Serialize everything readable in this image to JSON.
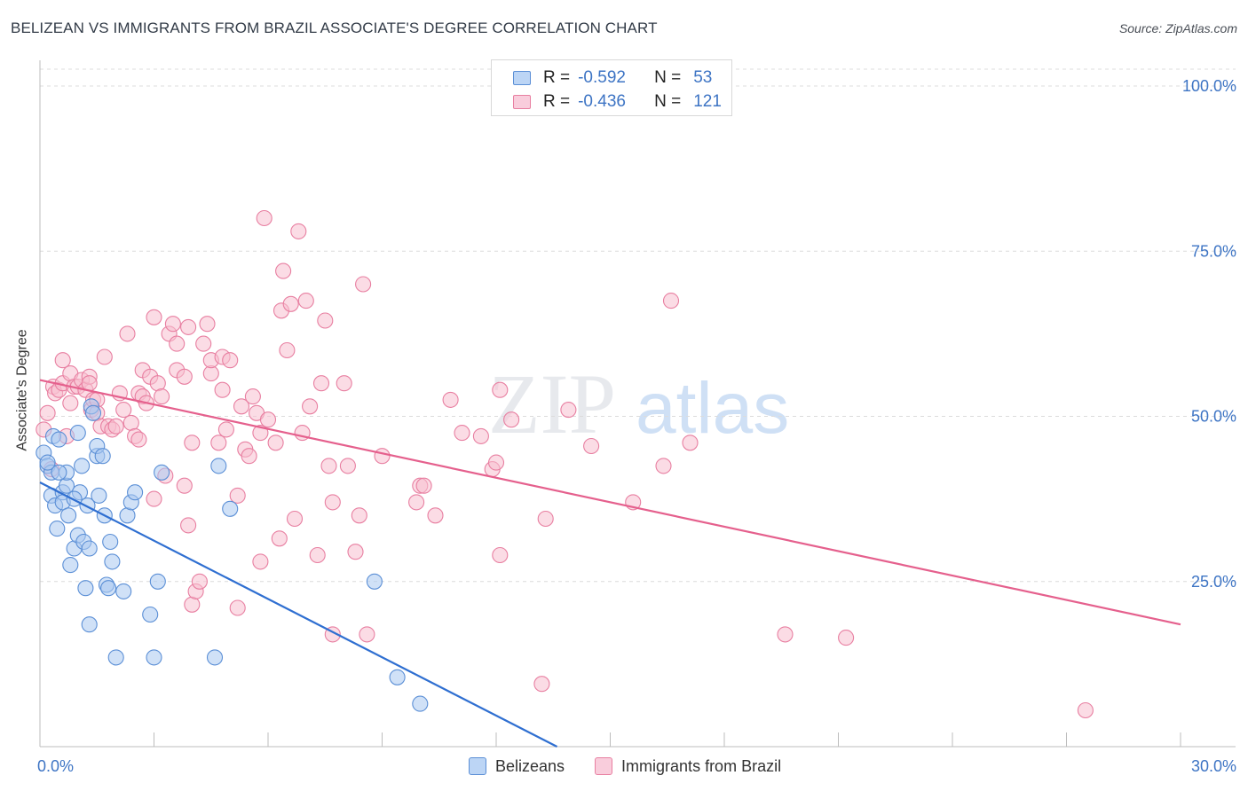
{
  "title": "BELIZEAN VS IMMIGRANTS FROM BRAZIL ASSOCIATE'S DEGREE CORRELATION CHART",
  "source": "Source: ZipAtlas.com",
  "watermark": {
    "zip": "ZIP",
    "atlas": "atlas"
  },
  "colors": {
    "blue_fill": "#a9c8f0",
    "blue_stroke": "#5b8fd6",
    "blue_line": "#2f6fd1",
    "pink_fill": "#f7bfd0",
    "pink_stroke": "#e87fa1",
    "pink_line": "#e5608d",
    "grid": "#dcdcdc",
    "tick_label": "#3d74c4"
  },
  "legend": {
    "rows": [
      {
        "r_label": "R =",
        "r_value": "-0.592",
        "n_label": "N =",
        "n_value": "53",
        "series": "blue"
      },
      {
        "r_label": "R =",
        "r_value": "-0.436",
        "n_label": "N =",
        "n_value": "121",
        "series": "pink"
      }
    ]
  },
  "bottom_legend": {
    "belizeans": "Belizeans",
    "brazil": "Immigrants from Brazil"
  },
  "chart_data": {
    "type": "scatter",
    "title": "BELIZEAN VS IMMIGRANTS FROM BRAZIL ASSOCIATE'S DEGREE CORRELATION CHART",
    "xlabel": "",
    "ylabel": "Associate's Degree",
    "xlim": [
      0,
      30
    ],
    "ylim": [
      0,
      100
    ],
    "x_tick_labels": [
      "0.0%",
      "30.0%"
    ],
    "y_ticks": [
      25,
      50,
      75,
      100
    ],
    "y_tick_labels": [
      "25.0%",
      "50.0%",
      "75.0%",
      "100.0%"
    ],
    "grid": true,
    "legend_position": "top-center",
    "series": [
      {
        "name": "Belizeans",
        "color": "#5b8fd6",
        "r": -0.592,
        "n": 53,
        "trend": {
          "x": [
            0,
            13.6
          ],
          "y": [
            40.0,
            0.0
          ]
        },
        "points": [
          [
            0.1,
            44.5
          ],
          [
            0.2,
            42.5
          ],
          [
            0.3,
            41.5
          ],
          [
            0.3,
            38.0
          ],
          [
            0.35,
            47.0
          ],
          [
            0.4,
            36.5
          ],
          [
            0.45,
            33.0
          ],
          [
            0.5,
            46.5
          ],
          [
            0.6,
            38.5
          ],
          [
            0.6,
            37.0
          ],
          [
            0.7,
            39.5
          ],
          [
            0.7,
            41.5
          ],
          [
            0.75,
            35.0
          ],
          [
            0.8,
            27.5
          ],
          [
            0.9,
            30.0
          ],
          [
            1.0,
            47.5
          ],
          [
            1.0,
            32.0
          ],
          [
            1.05,
            38.5
          ],
          [
            1.1,
            42.5
          ],
          [
            1.15,
            31.0
          ],
          [
            1.2,
            24.0
          ],
          [
            1.25,
            36.5
          ],
          [
            1.3,
            18.5
          ],
          [
            1.3,
            30.0
          ],
          [
            1.35,
            51.5
          ],
          [
            1.4,
            50.5
          ],
          [
            1.5,
            44.0
          ],
          [
            1.5,
            45.5
          ],
          [
            1.55,
            38.0
          ],
          [
            1.65,
            44.0
          ],
          [
            1.7,
            35.0
          ],
          [
            1.75,
            24.5
          ],
          [
            1.8,
            24.0
          ],
          [
            1.85,
            31.0
          ],
          [
            1.9,
            28.0
          ],
          [
            2.0,
            13.5
          ],
          [
            2.2,
            23.5
          ],
          [
            2.3,
            35.0
          ],
          [
            2.4,
            37.0
          ],
          [
            2.5,
            38.5
          ],
          [
            2.9,
            20.0
          ],
          [
            3.0,
            13.5
          ],
          [
            3.1,
            25.0
          ],
          [
            3.2,
            41.5
          ],
          [
            4.6,
            13.5
          ],
          [
            4.7,
            42.5
          ],
          [
            5.0,
            36.0
          ],
          [
            8.8,
            25.0
          ],
          [
            9.4,
            10.5
          ],
          [
            10.0,
            6.5
          ],
          [
            0.2,
            43.0
          ],
          [
            0.9,
            37.5
          ],
          [
            0.5,
            41.5
          ]
        ]
      },
      {
        "name": "Immigrants from Brazil",
        "color": "#e87fa1",
        "r": -0.436,
        "n": 121,
        "trend": {
          "x": [
            0,
            30
          ],
          "y": [
            55.5,
            18.5
          ]
        },
        "points": [
          [
            0.1,
            48.0
          ],
          [
            0.2,
            50.5
          ],
          [
            0.3,
            42.0
          ],
          [
            0.35,
            54.5
          ],
          [
            0.4,
            53.5
          ],
          [
            0.5,
            54.0
          ],
          [
            0.6,
            55.0
          ],
          [
            0.6,
            58.5
          ],
          [
            0.7,
            47.0
          ],
          [
            0.8,
            52.0
          ],
          [
            0.8,
            56.5
          ],
          [
            0.9,
            54.5
          ],
          [
            1.0,
            54.5
          ],
          [
            1.1,
            55.5
          ],
          [
            1.2,
            54.0
          ],
          [
            1.3,
            56.0
          ],
          [
            1.3,
            55.0
          ],
          [
            1.35,
            51.0
          ],
          [
            1.4,
            52.5
          ],
          [
            1.5,
            52.5
          ],
          [
            1.5,
            50.5
          ],
          [
            1.6,
            48.5
          ],
          [
            1.7,
            59.0
          ],
          [
            1.8,
            48.5
          ],
          [
            1.9,
            48.0
          ],
          [
            2.0,
            48.5
          ],
          [
            2.1,
            53.5
          ],
          [
            2.2,
            51.0
          ],
          [
            2.3,
            62.5
          ],
          [
            2.4,
            49.0
          ],
          [
            2.5,
            47.0
          ],
          [
            2.6,
            46.5
          ],
          [
            2.6,
            53.5
          ],
          [
            2.7,
            53.0
          ],
          [
            2.7,
            57.0
          ],
          [
            2.8,
            52.0
          ],
          [
            2.9,
            56.0
          ],
          [
            3.0,
            65.0
          ],
          [
            3.0,
            37.5
          ],
          [
            3.1,
            55.0
          ],
          [
            3.2,
            53.0
          ],
          [
            3.3,
            41.0
          ],
          [
            3.4,
            62.5
          ],
          [
            3.5,
            64.0
          ],
          [
            3.6,
            61.0
          ],
          [
            3.6,
            57.0
          ],
          [
            3.8,
            56.0
          ],
          [
            3.8,
            39.5
          ],
          [
            3.9,
            63.5
          ],
          [
            3.9,
            33.5
          ],
          [
            4.0,
            46.0
          ],
          [
            4.0,
            21.5
          ],
          [
            4.1,
            23.5
          ],
          [
            4.2,
            25.0
          ],
          [
            4.3,
            61.0
          ],
          [
            4.4,
            64.0
          ],
          [
            4.5,
            56.5
          ],
          [
            4.5,
            58.5
          ],
          [
            4.7,
            46.0
          ],
          [
            4.8,
            59.0
          ],
          [
            4.8,
            54.0
          ],
          [
            4.9,
            48.0
          ],
          [
            5.0,
            58.5
          ],
          [
            5.2,
            38.0
          ],
          [
            5.2,
            21.0
          ],
          [
            5.3,
            51.5
          ],
          [
            5.4,
            45.0
          ],
          [
            5.5,
            44.0
          ],
          [
            5.6,
            53.0
          ],
          [
            5.7,
            50.5
          ],
          [
            5.8,
            28.0
          ],
          [
            5.8,
            47.5
          ],
          [
            5.9,
            80.0
          ],
          [
            6.0,
            49.5
          ],
          [
            6.2,
            46.0
          ],
          [
            6.3,
            31.5
          ],
          [
            6.35,
            66.0
          ],
          [
            6.4,
            72.0
          ],
          [
            6.5,
            60.0
          ],
          [
            6.6,
            67.0
          ],
          [
            6.7,
            34.5
          ],
          [
            6.8,
            78.0
          ],
          [
            6.9,
            47.5
          ],
          [
            7.0,
            67.5
          ],
          [
            7.1,
            51.5
          ],
          [
            7.3,
            29.0
          ],
          [
            7.4,
            55.0
          ],
          [
            7.5,
            64.5
          ],
          [
            7.6,
            42.5
          ],
          [
            7.7,
            17.0
          ],
          [
            7.7,
            37.0
          ],
          [
            8.0,
            55.0
          ],
          [
            8.1,
            42.5
          ],
          [
            8.3,
            29.5
          ],
          [
            8.4,
            35.0
          ],
          [
            8.5,
            70.0
          ],
          [
            8.6,
            17.0
          ],
          [
            9.0,
            44.0
          ],
          [
            9.9,
            37.0
          ],
          [
            10.0,
            39.5
          ],
          [
            10.1,
            39.5
          ],
          [
            10.4,
            35.0
          ],
          [
            10.8,
            52.5
          ],
          [
            11.1,
            47.5
          ],
          [
            11.6,
            47.0
          ],
          [
            11.9,
            42.0
          ],
          [
            12.0,
            43.0
          ],
          [
            12.1,
            54.0
          ],
          [
            12.1,
            29.0
          ],
          [
            12.4,
            49.5
          ],
          [
            13.2,
            9.5
          ],
          [
            13.3,
            34.5
          ],
          [
            13.9,
            51.0
          ],
          [
            14.5,
            45.5
          ],
          [
            15.6,
            37.0
          ],
          [
            16.4,
            42.5
          ],
          [
            16.6,
            67.5
          ],
          [
            17.1,
            46.0
          ],
          [
            19.6,
            17.0
          ],
          [
            21.2,
            16.5
          ],
          [
            27.5,
            5.5
          ]
        ]
      }
    ]
  }
}
